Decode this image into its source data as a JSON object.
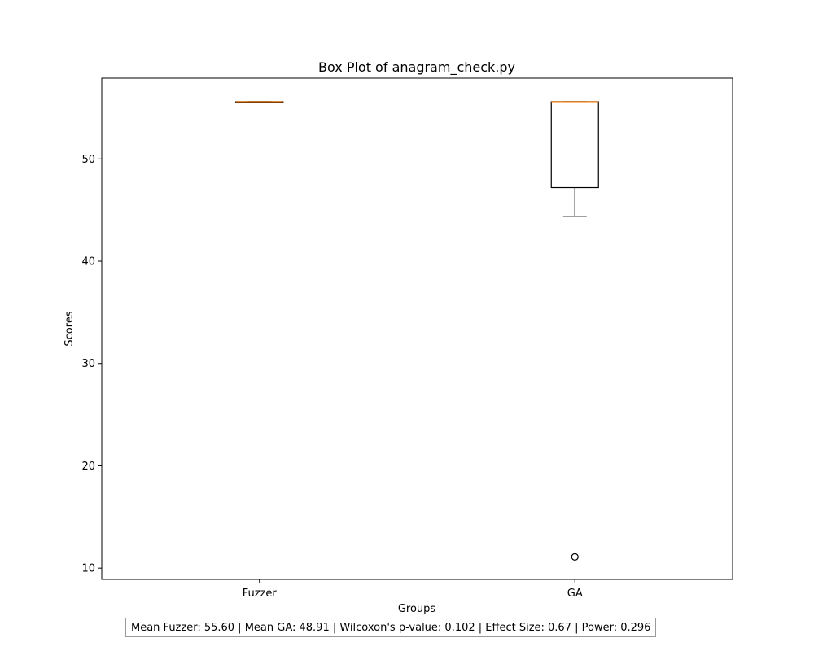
{
  "chart_data": {
    "type": "box",
    "title": "Box Plot of anagram_check.py",
    "xlabel": "Groups",
    "ylabel": "Scores",
    "ylim": [
      8.9,
      57.9
    ],
    "yticks": [
      10,
      20,
      30,
      40,
      50
    ],
    "categories": [
      "Fuzzer",
      "GA"
    ],
    "boxes": [
      {
        "name": "Fuzzer",
        "whisker_low": 55.6,
        "q1": 55.6,
        "median": 55.6,
        "q3": 55.6,
        "whisker_high": 55.6,
        "outliers": []
      },
      {
        "name": "GA",
        "whisker_low": 44.4,
        "q1": 47.2,
        "median": 55.6,
        "q3": 55.6,
        "whisker_high": 55.6,
        "outliers": [
          11.1
        ]
      }
    ],
    "colors": {
      "box": "#000000",
      "median": "#ff7f0e"
    },
    "grid": false
  },
  "stats_text": "Mean Fuzzer: 55.60 | Mean GA: 48.91 | Wilcoxon's p-value: 0.102 | Effect Size: 0.67 | Power: 0.296"
}
